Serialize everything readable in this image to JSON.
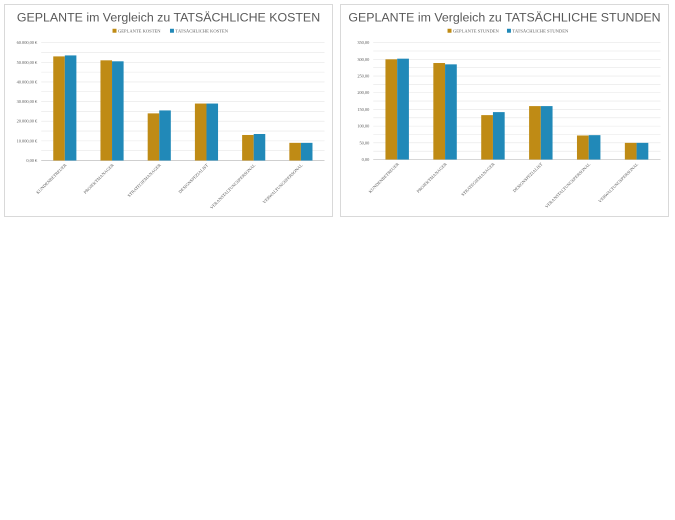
{
  "colors": {
    "planned": "#BF8B15",
    "actual": "#2189B8",
    "text": "#595959",
    "grid": "#E6E6E6"
  },
  "chart_data": [
    {
      "type": "bar",
      "title": "GEPLANTE im Vergleich zu TATSÄCHLICHE KOSTEN",
      "categories": [
        "KUNDENBETREUER",
        "PROJEKTMANAGER",
        "STRATEGIEMANAGER",
        "DESIGNSPEZIALIST",
        "VERANSTALTUNGSPERSONAL",
        "VERWALTUNGSPERSONAL"
      ],
      "series": [
        {
          "name": "GEPLANTE KOSTEN",
          "values": [
            53000,
            51000,
            24000,
            29000,
            13000,
            9000
          ]
        },
        {
          "name": "TATSÄCHLICHE KOSTEN",
          "values": [
            53500,
            50500,
            25500,
            29000,
            13500,
            9000
          ]
        }
      ],
      "yticks": [
        0,
        10000,
        20000,
        30000,
        40000,
        50000,
        60000
      ],
      "ytick_labels": [
        "0,00 €",
        "10.000,00 €",
        "20.000,00 €",
        "30.000,00 €",
        "40.000,00 €",
        "50.000,00 €",
        "60.000,00 €"
      ],
      "ylim": [
        0,
        60000
      ],
      "minor_grid_step": 5000,
      "xlabel": "",
      "ylabel": "",
      "legend": "top-center"
    },
    {
      "type": "bar",
      "title": "GEPLANTE im Vergleich zu TATSÄCHLICHE STUNDEN",
      "categories": [
        "KUNDENBETREUER",
        "PROJEKTMANAGER",
        "STRATEGIEMANAGER",
        "DESIGNSPEZIALIST",
        "VERANSTALTUNGSPERSONAL",
        "VERWALTUNGSPERSONAL"
      ],
      "series": [
        {
          "name": "GEPLANTE STUNDEN",
          "values": [
            300,
            289,
            133,
            160,
            72,
            50
          ]
        },
        {
          "name": "TATSÄCHLICHE STUNDEN",
          "values": [
            302,
            285,
            142,
            160,
            73,
            50
          ]
        }
      ],
      "yticks": [
        0,
        50,
        100,
        150,
        200,
        250,
        300,
        350
      ],
      "ytick_labels": [
        "0,00",
        "50,00",
        "100,00",
        "150,00",
        "200,00",
        "250,00",
        "300,00",
        "350,00"
      ],
      "ylim": [
        0,
        350
      ],
      "minor_grid_step": 25,
      "xlabel": "",
      "ylabel": "",
      "legend": "top-center"
    }
  ]
}
